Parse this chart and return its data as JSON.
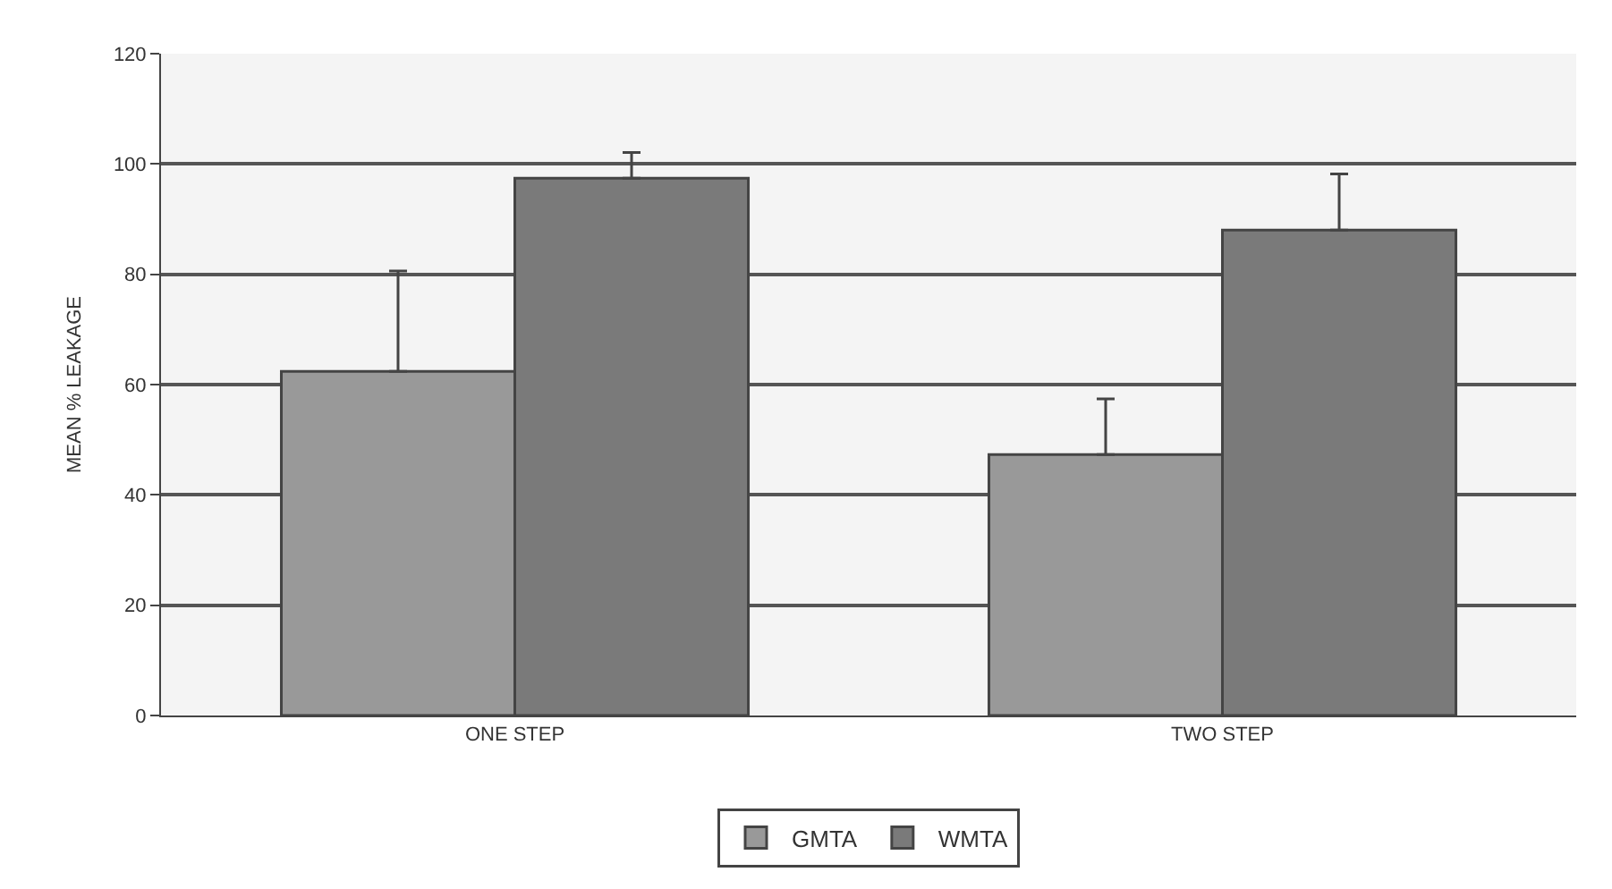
{
  "chart_data": {
    "type": "bar",
    "ylabel": "MEAN % LEAKAGE",
    "categories": [
      "ONE STEP",
      "TWO STEP"
    ],
    "series": [
      {
        "name": "GMTA",
        "color": "#999999",
        "values": [
          62.4,
          47.3
        ],
        "errors": [
          [
            62.4,
            80.6
          ],
          [
            47.3,
            57.4
          ]
        ]
      },
      {
        "name": "WMTA",
        "color": "#7a7a7a",
        "values": [
          97.4,
          88.0
        ],
        "errors": [
          [
            97.4,
            102.1
          ],
          [
            88.0,
            98.2
          ]
        ]
      }
    ],
    "ylim": [
      0,
      120
    ],
    "yticks": [
      0,
      20,
      40,
      60,
      80,
      100,
      120
    ],
    "grid": "y",
    "legend": "bottom"
  }
}
